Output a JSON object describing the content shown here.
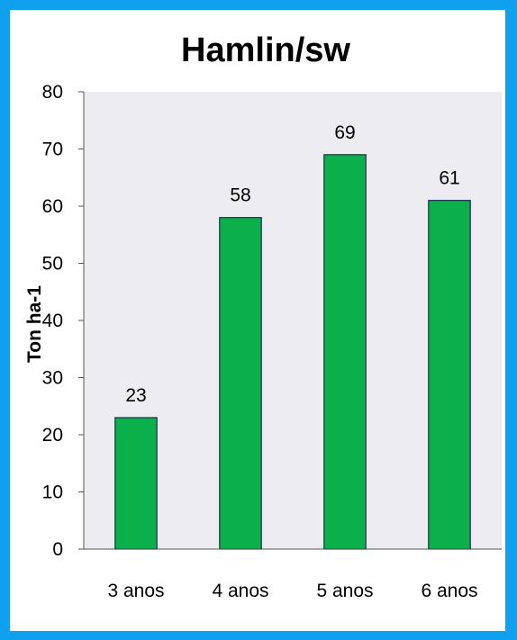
{
  "chart_data": {
    "type": "bar",
    "title": "Hamlin/sw",
    "xlabel": "",
    "ylabel": "Ton ha-1",
    "categories": [
      "3 anos",
      "4 anos",
      "5 anos",
      "6  anos"
    ],
    "values": [
      23,
      58,
      69,
      61
    ],
    "data_labels": [
      "23",
      "58",
      "69",
      "61"
    ],
    "ylim": [
      0,
      80
    ],
    "yticks": [
      0,
      10,
      20,
      30,
      40,
      50,
      60,
      70,
      80
    ],
    "grid": false,
    "legend": "none",
    "colors": {
      "bar": "#0bb04b",
      "bar_edge": "#1e2a55",
      "plot_background": "#ececf1",
      "frame": "#10a0f0",
      "axis": "#555555"
    }
  }
}
